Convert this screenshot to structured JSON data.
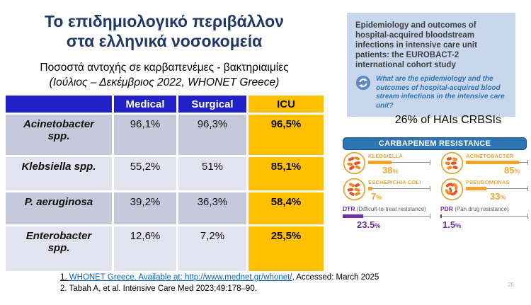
{
  "slide": {
    "title": {
      "line1": "Το επιδημιολογικό περιβάλλον",
      "line2": "στα ελληνικά νοσοκομεία"
    },
    "subtitle": {
      "line1": "Ποσοστά αντοχής σε καρβαπενέμες - βακτηριαιμίες",
      "line2": "(Ιούλιος – Δεκέμβριος 2022, WHONET Greece)"
    },
    "page_number": "25"
  },
  "table": {
    "columns": {
      "organism": "",
      "medical": "Medical",
      "surgical": "Surgical",
      "icu": "ICU"
    },
    "rows": [
      {
        "organism": "Acinetobacter spp.",
        "medical": "96,1%",
        "surgical": "96,3%",
        "icu": "96,5%"
      },
      {
        "organism": "Klebsiella spp.",
        "medical": "55,2%",
        "surgical": "51%",
        "icu": "85,1%"
      },
      {
        "organism": "P. aeruginosa",
        "medical": "39,2%",
        "surgical": "36,3%",
        "icu": "58,4%"
      },
      {
        "organism": "Enterobacter spp.",
        "medical": "12,6%",
        "surgical": "7,2%",
        "icu": "25,5%"
      }
    ]
  },
  "study_box": {
    "title": "Epidemiology and outcomes of hospital-acquired bloodstream infections in intensive care unit patients: the EUROBACT-2 international cohort study",
    "question": "What are the epidemiology and the outcomes of hospital-acquired blood stream infections in the intensive care unit?"
  },
  "hais_note": "26% of HAIs CRBSIs",
  "resistance": {
    "banner_label": "CARBAPENEM RESISTANCE",
    "percent_sign": "%",
    "items": [
      {
        "label": "KLEBSIELLA",
        "value": 38,
        "display": "38"
      },
      {
        "label": "ESCHERICHIA COLI",
        "value": 7,
        "display": "7"
      },
      {
        "label": "ACINETOBACTER",
        "value": 85,
        "display": "85"
      },
      {
        "label": "PSEUDOMONAS",
        "value": 33,
        "display": "33"
      }
    ],
    "dtr": {
      "abbr": "DTR",
      "desc": "(Difficult-to-treat resistance)",
      "value": 23.5,
      "display": "23.5"
    },
    "pdr": {
      "abbr": "PDR",
      "desc": "(Pan drug resistance)",
      "value": 1.5,
      "display": "1.5"
    }
  },
  "references": [
    {
      "prefix": "1. ",
      "link": "WHONET Greece. Available at: http://www.mednet.gr/whonet/",
      "suffix": ", Accessed: March 2025"
    },
    {
      "text": "2. Tabah A, et al. Intensive Care Med 2023;49:178–90."
    }
  ],
  "chart_data": {
    "type": "bar",
    "title": "CARBAPENEM RESISTANCE",
    "categories": [
      "Klebsiella",
      "Escherichia coli",
      "Acinetobacter",
      "Pseudomonas",
      "DTR (Difficult-to-treat resistance)",
      "PDR (Pan drug resistance)"
    ],
    "values": [
      38,
      7,
      85,
      33,
      23.5,
      1.5
    ],
    "unit": "%",
    "xlim": [
      0,
      100
    ]
  },
  "colors": {
    "title_navy": "#1F3864",
    "table_header_blue": "#2121C7",
    "icu_gold": "#FFC000",
    "row_dark": "#C8C8DC",
    "row_light": "#E3E3F0",
    "panel_blue_bg": "#C8D7EC",
    "accent_blue": "#2E74B5",
    "banner_blue": "#2E75B6",
    "banner_border": "#1F4E79",
    "info_gold": "#EFA62E",
    "info_purple": "#7030A0",
    "link_blue": "#0563C1"
  }
}
